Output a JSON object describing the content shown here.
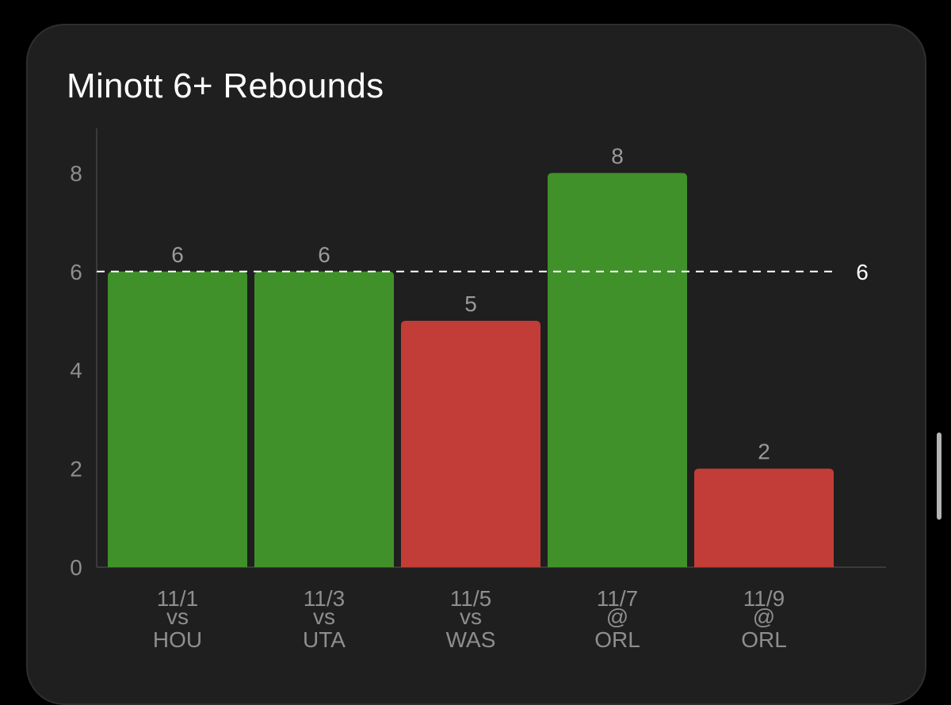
{
  "card": {
    "title": "Minott 6+ Rebounds"
  },
  "colors": {
    "over": "#40912a",
    "under": "#c23d37",
    "background": "#1f1f1f",
    "threshold_line": "#ffffff"
  },
  "chart_data": {
    "type": "bar",
    "title": "Minott 6+ Rebounds",
    "categories": [
      {
        "date": "11/1",
        "loc": "vs",
        "opp": "HOU"
      },
      {
        "date": "11/3",
        "loc": "vs",
        "opp": "UTA"
      },
      {
        "date": "11/5",
        "loc": "vs",
        "opp": "WAS"
      },
      {
        "date": "11/7",
        "loc": "@",
        "opp": "ORL"
      },
      {
        "date": "11/9",
        "loc": "@",
        "opp": "ORL"
      }
    ],
    "values": [
      6,
      6,
      5,
      8,
      2
    ],
    "data_labels": [
      "6",
      "6",
      "5",
      "8",
      "2"
    ],
    "bar_status": [
      "over",
      "over",
      "under",
      "over",
      "under"
    ],
    "threshold": 6,
    "threshold_label": "6",
    "ylim": [
      0,
      9
    ],
    "yticks": [
      "0",
      "2",
      "4",
      "6",
      "8"
    ],
    "xlabel": "",
    "ylabel": "",
    "grid": false,
    "legend": "none"
  }
}
